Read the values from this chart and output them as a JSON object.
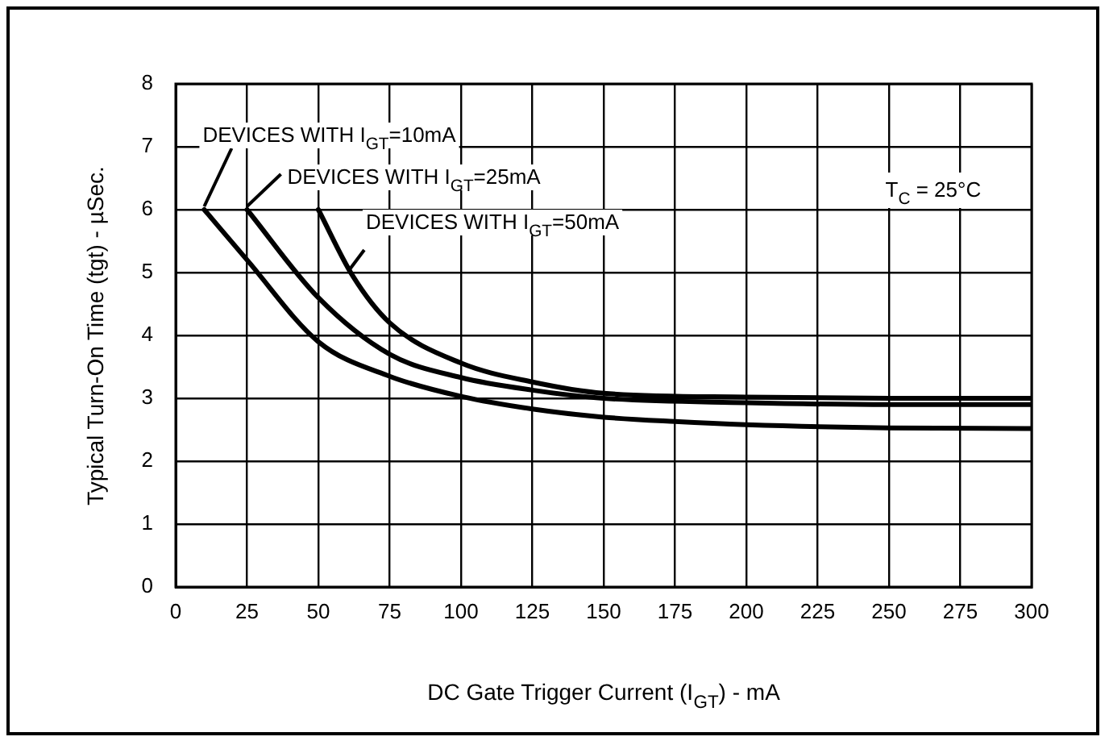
{
  "chart_data": {
    "type": "line",
    "xlabel": "DC Gate Trigger Current (I$_{GT}$) - mA",
    "ylabel": "Typical Turn-On Time (tgt) - µSec.",
    "xlim": [
      0,
      300
    ],
    "xticks": [
      0,
      25,
      50,
      75,
      100,
      125,
      150,
      175,
      200,
      225,
      250,
      275,
      300
    ],
    "ylim": [
      0,
      8
    ],
    "yticks": [
      0,
      1,
      2,
      3,
      4,
      5,
      6,
      7,
      8
    ],
    "grid": true,
    "legend": false,
    "marker": "none",
    "line_style": "solid",
    "series": [
      {
        "color": "#000000",
        "x": [
          10,
          25,
          50,
          75,
          100,
          125,
          150,
          175,
          200,
          250,
          300
        ],
        "values": [
          6,
          5.2,
          3.9,
          3.35,
          3.03,
          2.83,
          2.7,
          2.63,
          2.58,
          2.53,
          2.52
        ]
      },
      {
        "color": "#000000",
        "x": [
          25,
          50,
          75,
          100,
          125,
          150,
          200,
          250,
          300
        ],
        "values": [
          6,
          4.6,
          3.7,
          3.33,
          3.13,
          3.0,
          2.93,
          2.9,
          2.9
        ]
      },
      {
        "color": "#000000",
        "x": [
          50,
          62,
          75,
          100,
          125,
          150,
          200,
          250,
          300
        ],
        "values": [
          6,
          4.95,
          4.2,
          3.56,
          3.26,
          3.08,
          3.02,
          3.0,
          3.0
        ]
      }
    ],
    "annotations": [
      {
        "text": "DEVICES WITH I$_{GT}$=10mA",
        "x": 10,
        "y": 6
      },
      {
        "text": "DEVICES WITH I$_{GT}$=25mA",
        "x": 25,
        "y": 6
      },
      {
        "text": "DEVICES WITH I$_{GT}$=50mA",
        "x": 61,
        "y": 5
      },
      "T$_{C}$ = 25°C"
    ]
  }
}
